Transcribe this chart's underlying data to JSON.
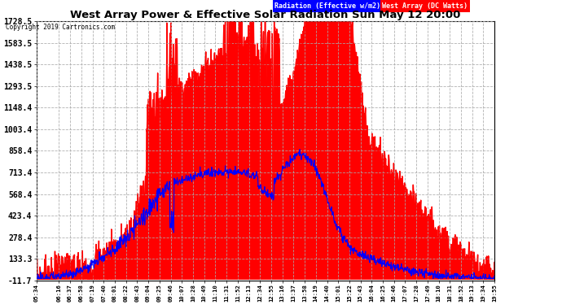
{
  "title": "West Array Power & Effective Solar Radiation Sun May 12 20:00",
  "copyright": "Copyright 2019 Cartronics.com",
  "legend_blue": "Radiation (Effective w/m2)",
  "legend_red": "West Array (DC Watts)",
  "yticks": [
    1728.5,
    1583.5,
    1438.5,
    1293.5,
    1148.4,
    1003.4,
    858.4,
    713.4,
    568.4,
    423.4,
    278.4,
    133.3,
    -11.7
  ],
  "ymin": -11.7,
  "ymax": 1728.5,
  "plot_bg_color": "#ffffff",
  "grid_color": "#aaaaaa",
  "xtick_labels": [
    "05:34",
    "06:16",
    "06:37",
    "06:58",
    "07:19",
    "07:40",
    "08:01",
    "08:22",
    "08:43",
    "09:04",
    "09:25",
    "09:46",
    "10:07",
    "10:28",
    "10:49",
    "11:10",
    "11:31",
    "11:52",
    "12:13",
    "12:34",
    "12:55",
    "13:16",
    "13:37",
    "13:58",
    "14:19",
    "14:40",
    "15:01",
    "15:22",
    "15:43",
    "16:04",
    "16:25",
    "16:46",
    "17:07",
    "17:28",
    "17:49",
    "18:10",
    "18:31",
    "18:52",
    "19:13",
    "19:34",
    "19:55"
  ]
}
